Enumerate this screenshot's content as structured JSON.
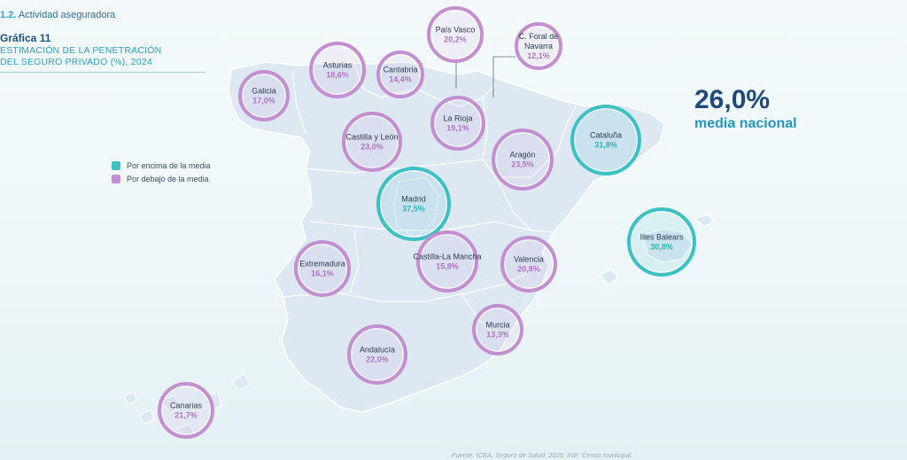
{
  "header": {
    "section_number": "1.2.",
    "section_title": "Actividad aseguradora",
    "figure_label": "Gráfica 11",
    "figure_title_line1": "ESTIMACIÓN DE LA PENETRACIÓN",
    "figure_title_line2": "DEL SEGURO PRIVADO (%), 2024"
  },
  "legend": {
    "above": "Por encima de la media",
    "below": "Por debajo de la media"
  },
  "national": {
    "value": "26,0%",
    "label": "media nacional"
  },
  "colors": {
    "above": "#3cc1c2",
    "below": "#c38fd0",
    "above_text": "#2fb3b4",
    "below_text": "#b173c4"
  },
  "regions": [
    {
      "name": "Galicia",
      "value": "17,0%",
      "status": "below"
    },
    {
      "name": "Asturias",
      "value": "18,6%",
      "status": "below"
    },
    {
      "name": "Cantabria",
      "value": "14,4%",
      "status": "below"
    },
    {
      "name": "País Vasco",
      "value": "20,2%",
      "status": "below"
    },
    {
      "name": "C. Foral de Navarra",
      "value": "12,1%",
      "status": "below"
    },
    {
      "name": "La Rioja",
      "value": "19,1%",
      "status": "below"
    },
    {
      "name": "Castilla y León",
      "value": "23,0%",
      "status": "below"
    },
    {
      "name": "Aragón",
      "value": "23,5%",
      "status": "below"
    },
    {
      "name": "Cataluña",
      "value": "31,8%",
      "status": "above"
    },
    {
      "name": "Madrid",
      "value": "37,5%",
      "status": "above"
    },
    {
      "name": "Illes Balears",
      "value": "30,8%",
      "status": "above"
    },
    {
      "name": "Extremadura",
      "value": "16,1%",
      "status": "below"
    },
    {
      "name": "Castilla-La Mancha",
      "value": "15,8%",
      "status": "below"
    },
    {
      "name": "Valencia",
      "value": "20,8%",
      "status": "below"
    },
    {
      "name": "Murcia",
      "value": "13,3%",
      "status": "below"
    },
    {
      "name": "Andalucía",
      "value": "22,0%",
      "status": "below"
    },
    {
      "name": "Canarias",
      "value": "21,7%",
      "status": "below"
    }
  ],
  "source": "Fuente: ICEA, Seguro de Salud, 2025. INE: Censo municipal."
}
